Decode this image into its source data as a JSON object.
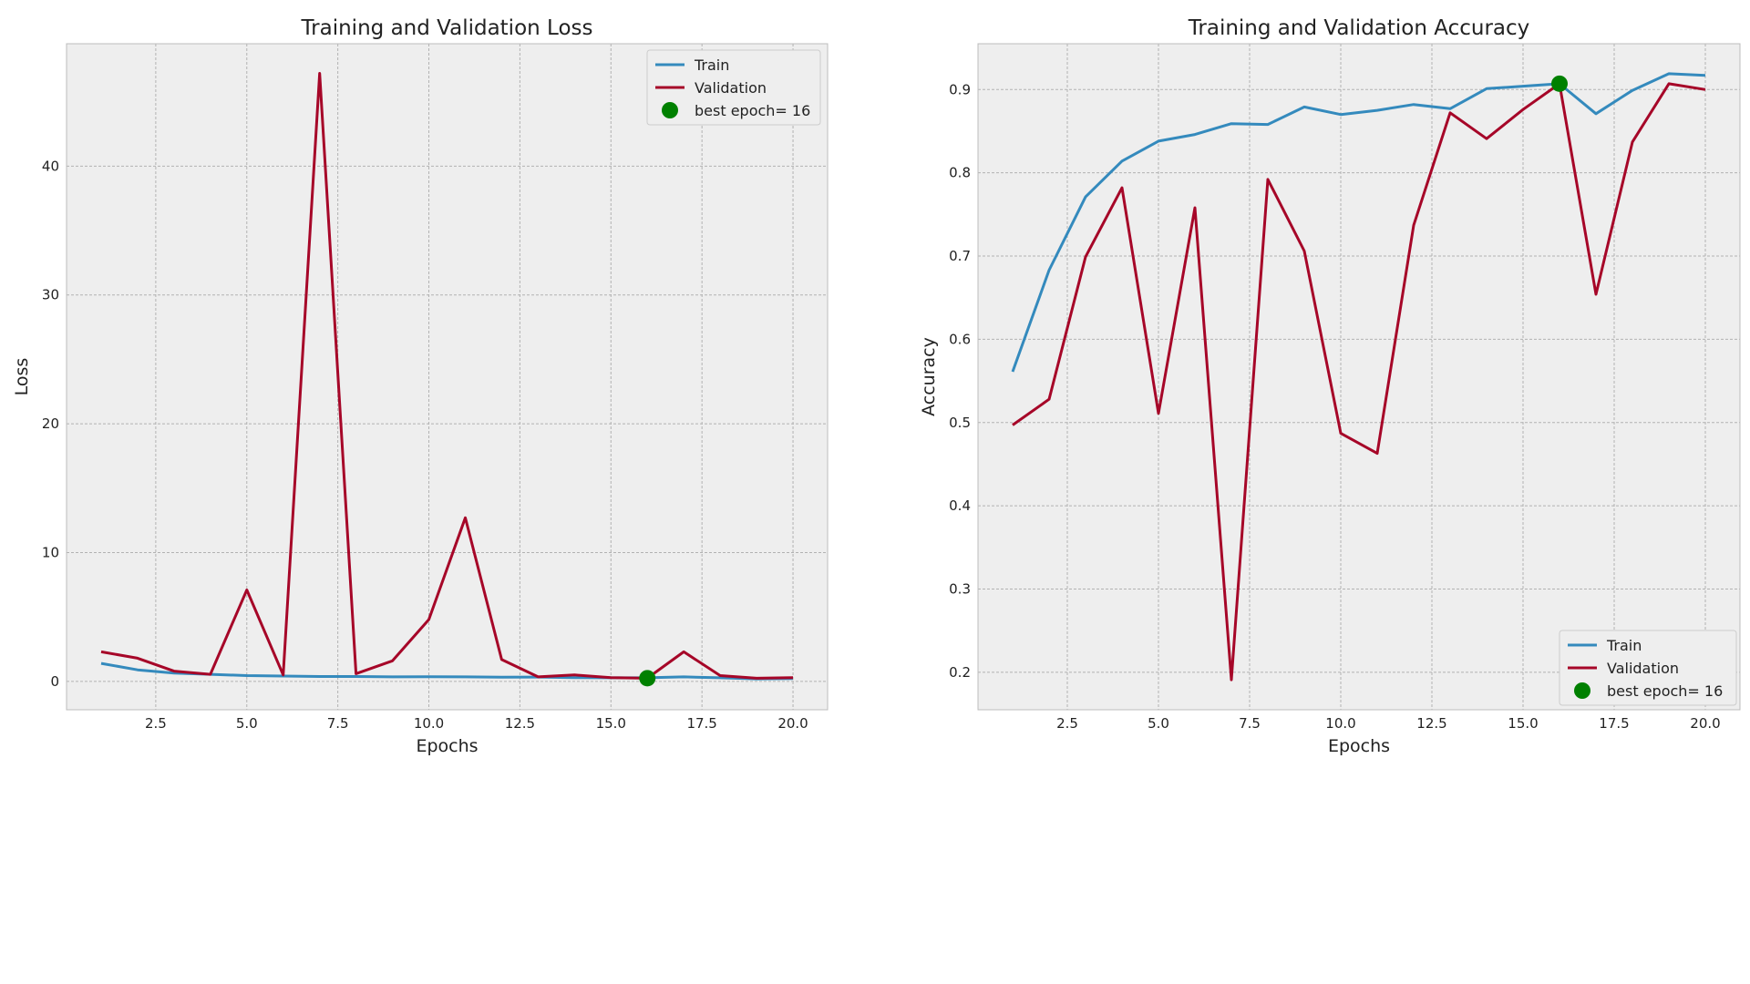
{
  "colors": {
    "train": "#348abd",
    "validation": "#a60628",
    "best": "#008000",
    "panel_bg": "#eeeeee",
    "grid": "#b2b2b2",
    "frame": "#bcbcbc"
  },
  "chart_data": [
    {
      "type": "line",
      "title": "Training and Validation Loss",
      "xlabel": "Epochs",
      "ylabel": "Loss",
      "xlim": [
        0.05,
        20.95
      ],
      "ylim": [
        -2.2,
        49.5
      ],
      "xticks": [
        2.5,
        5.0,
        7.5,
        10.0,
        12.5,
        15.0,
        17.5,
        20.0
      ],
      "xtick_labels": [
        "2.5",
        "5.0",
        "7.5",
        "10.0",
        "12.5",
        "15.0",
        "17.5",
        "20.0"
      ],
      "yticks": [
        0,
        10,
        20,
        30,
        40
      ],
      "ytick_labels": [
        "0",
        "10",
        "20",
        "30",
        "40"
      ],
      "grid": true,
      "legend_position": "upper right",
      "x": [
        1,
        2,
        3,
        4,
        5,
        6,
        7,
        8,
        9,
        10,
        11,
        12,
        13,
        14,
        15,
        16,
        17,
        18,
        19,
        20
      ],
      "series": [
        {
          "name": "Train",
          "color_key": "train",
          "values": [
            1.4,
            0.9,
            0.65,
            0.55,
            0.45,
            0.42,
            0.38,
            0.38,
            0.35,
            0.36,
            0.35,
            0.33,
            0.34,
            0.3,
            0.28,
            0.28,
            0.35,
            0.28,
            0.2,
            0.22
          ]
        },
        {
          "name": "Validation",
          "color_key": "validation",
          "values": [
            2.3,
            1.8,
            0.8,
            0.55,
            7.1,
            0.5,
            47.2,
            0.6,
            1.6,
            4.8,
            12.7,
            1.7,
            0.35,
            0.5,
            0.3,
            0.25,
            2.3,
            0.45,
            0.25,
            0.3
          ]
        }
      ],
      "best_point": {
        "label": "best epoch= 16",
        "x": 16,
        "y": 0.25
      }
    },
    {
      "type": "line",
      "title": "Training and Validation Accuracy",
      "xlabel": "Epochs",
      "ylabel": "Accuracy",
      "xlim": [
        0.05,
        20.95
      ],
      "ylim": [
        0.155,
        0.955
      ],
      "xticks": [
        2.5,
        5.0,
        7.5,
        10.0,
        12.5,
        15.0,
        17.5,
        20.0
      ],
      "xtick_labels": [
        "2.5",
        "5.0",
        "7.5",
        "10.0",
        "12.5",
        "15.0",
        "17.5",
        "20.0"
      ],
      "yticks": [
        0.2,
        0.3,
        0.4,
        0.5,
        0.6,
        0.7,
        0.8,
        0.9
      ],
      "ytick_labels": [
        "0.2",
        "0.3",
        "0.4",
        "0.5",
        "0.6",
        "0.7",
        "0.8",
        "0.9"
      ],
      "grid": true,
      "legend_position": "lower right",
      "x": [
        1,
        2,
        3,
        4,
        5,
        6,
        7,
        8,
        9,
        10,
        11,
        12,
        13,
        14,
        15,
        16,
        17,
        18,
        19,
        20
      ],
      "series": [
        {
          "name": "Train",
          "color_key": "train",
          "values": [
            0.561,
            0.683,
            0.771,
            0.814,
            0.838,
            0.846,
            0.859,
            0.858,
            0.879,
            0.87,
            0.875,
            0.882,
            0.877,
            0.901,
            0.904,
            0.907,
            0.871,
            0.899,
            0.919,
            0.917
          ]
        },
        {
          "name": "Validation",
          "color_key": "validation",
          "values": [
            0.497,
            0.528,
            0.699,
            0.782,
            0.511,
            0.758,
            0.191,
            0.792,
            0.706,
            0.487,
            0.463,
            0.737,
            0.872,
            0.841,
            0.876,
            0.907,
            0.654,
            0.837,
            0.907,
            0.9
          ]
        }
      ],
      "best_point": {
        "label": "best epoch= 16",
        "x": 16,
        "y": 0.907
      }
    }
  ]
}
